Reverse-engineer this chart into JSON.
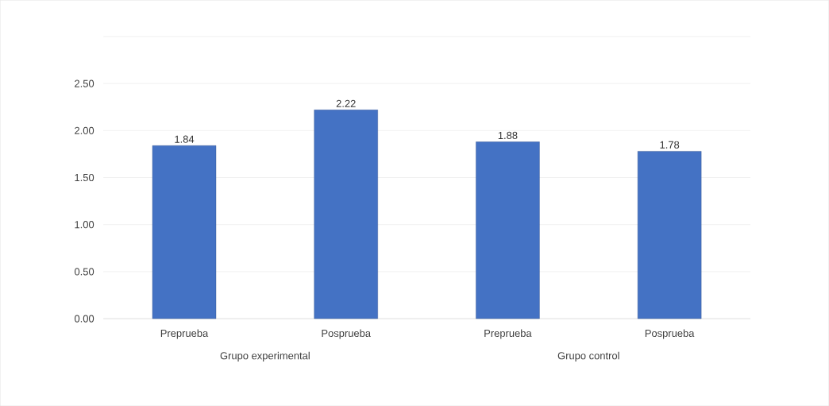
{
  "chart_data": {
    "type": "bar",
    "categories": [
      "Preprueba",
      "Posprueba",
      "Preprueba",
      "Posprueba"
    ],
    "values": [
      1.84,
      2.22,
      1.88,
      1.78
    ],
    "color": "#4472c4",
    "data_labels": true,
    "ylim": [
      0,
      3
    ],
    "yticks": [
      {
        "value": 0,
        "label": "0.00"
      },
      {
        "value": 0.5,
        "label": "0.50"
      },
      {
        "value": 1,
        "label": "1.00"
      },
      {
        "value": 1.5,
        "label": "1.50"
      },
      {
        "value": 2,
        "label": "2.00"
      },
      {
        "value": 2.5,
        "label": "2.50"
      },
      {
        "value": 3,
        "label": null
      }
    ],
    "grid": "y",
    "annotations": [
      "Grupo experimental",
      "Grupo control"
    ]
  }
}
